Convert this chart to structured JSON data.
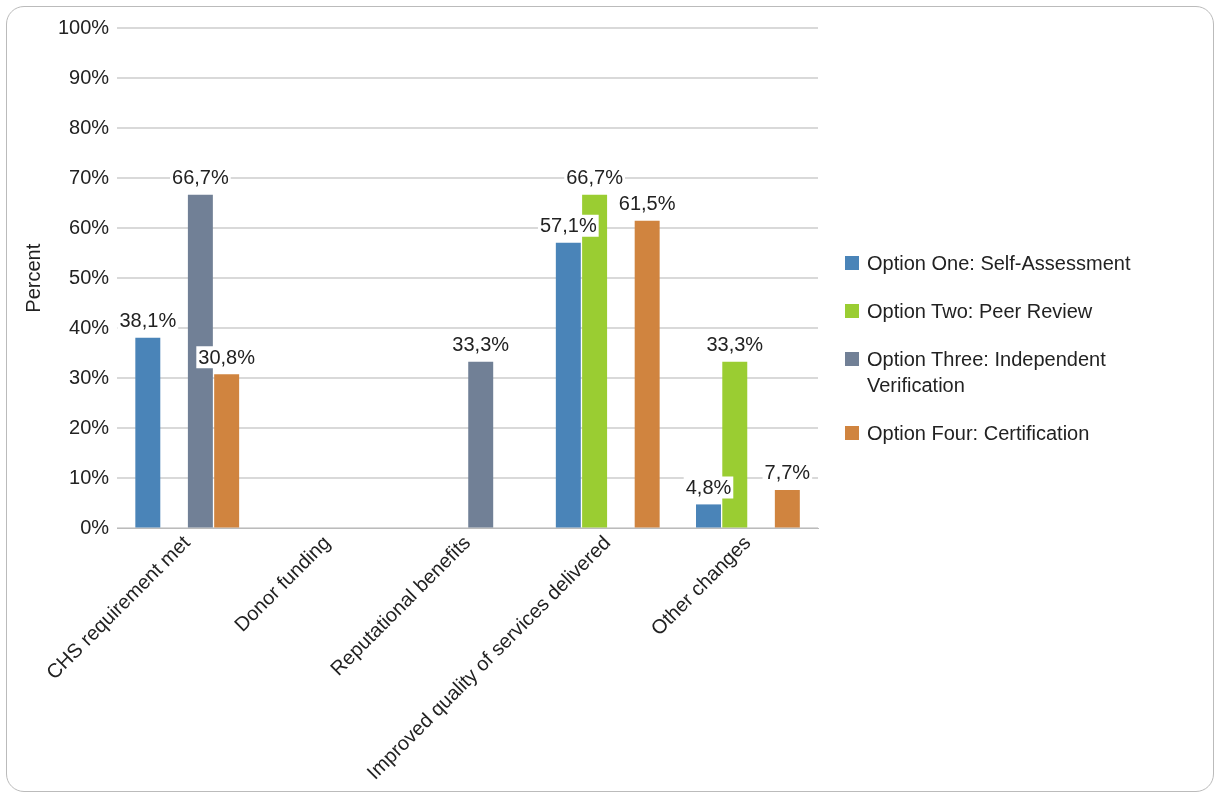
{
  "chart_data": {
    "type": "bar",
    "ylabel": "Percent",
    "categories": [
      "CHS requirement met",
      "Donor funding",
      "Reputational benefits",
      "Improved quality of services delivered",
      "Other changes"
    ],
    "series": [
      {
        "name": "Option One: Self-Assessment",
        "color": "#4a84b8",
        "values": [
          38.1,
          null,
          null,
          57.1,
          4.8
        ],
        "value_labels": [
          "38,1%",
          null,
          null,
          "57,1%",
          "4,8%"
        ]
      },
      {
        "name": "Option Two: Peer Review",
        "color": "#9acd32",
        "values": [
          null,
          null,
          null,
          66.7,
          33.3
        ],
        "value_labels": [
          null,
          null,
          null,
          "66,7%",
          "33,3%"
        ]
      },
      {
        "name": "Option Three: Independent Verification",
        "color": "#718096",
        "values": [
          66.7,
          null,
          33.3,
          null,
          null
        ],
        "value_labels": [
          "66,7%",
          null,
          "33,3%",
          null,
          null
        ]
      },
      {
        "name": "Option Four: Certification",
        "color": "#d0843f",
        "values": [
          30.8,
          null,
          null,
          61.5,
          7.7
        ],
        "value_labels": [
          "30,8%",
          null,
          null,
          "61,5%",
          "7,7%"
        ]
      }
    ],
    "ylim": [
      0,
      100
    ],
    "yticks": [
      {
        "value": 0,
        "label": "0%"
      },
      {
        "value": 10,
        "label": "10%"
      },
      {
        "value": 20,
        "label": "20%"
      },
      {
        "value": 30,
        "label": "30%"
      },
      {
        "value": 40,
        "label": "40%"
      },
      {
        "value": 50,
        "label": "50%"
      },
      {
        "value": 60,
        "label": "60%"
      },
      {
        "value": 70,
        "label": "70%"
      },
      {
        "value": 80,
        "label": "80%"
      },
      {
        "value": 90,
        "label": "90%"
      },
      {
        "value": 100,
        "label": "100%"
      }
    ],
    "grid": "y",
    "legend": "right"
  }
}
